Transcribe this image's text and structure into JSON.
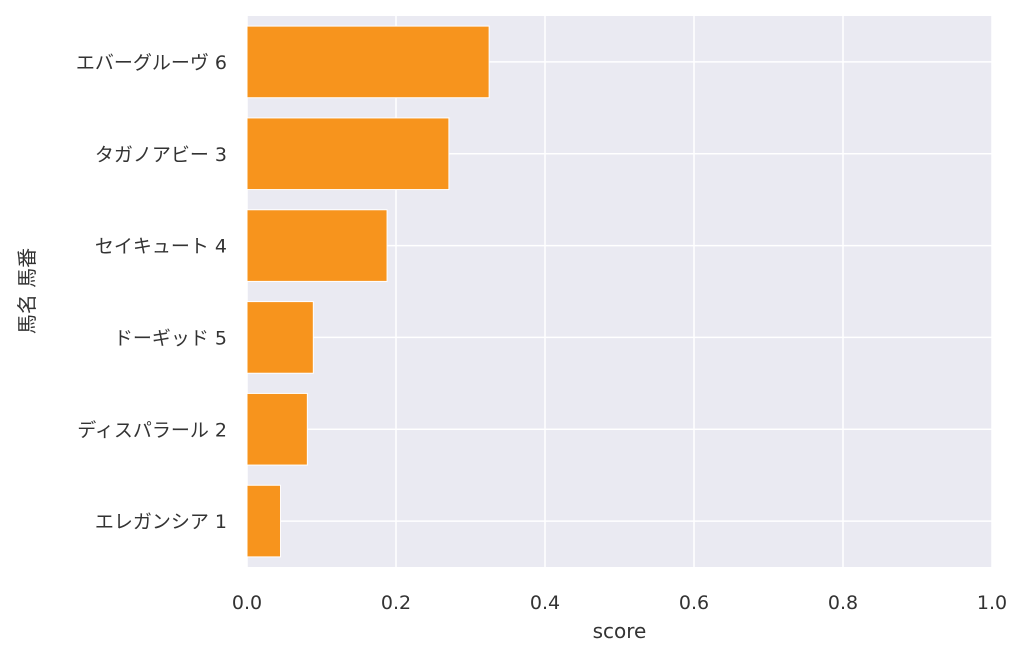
{
  "chart_data": {
    "type": "bar",
    "orientation": "horizontal",
    "categories": [
      "エバーグルーヴ 6",
      "タガノアビー 3",
      "セイキュート 4",
      "ドーギッド 5",
      "ディスパラール 2",
      "エレガンシア 1"
    ],
    "values": [
      0.325,
      0.271,
      0.188,
      0.089,
      0.081,
      0.045
    ],
    "xlabel": "score",
    "ylabel": "馬名 馬番",
    "xlim": [
      0,
      1.0
    ],
    "xticks": [
      "0.0",
      "0.2",
      "0.4",
      "0.6",
      "0.8",
      "1.0"
    ],
    "grid": true,
    "legend": "none",
    "colors": {
      "bar": "#f7941d",
      "plot_background": "#eaeaf2",
      "grid": "#ffffff",
      "text": "#333333"
    }
  }
}
